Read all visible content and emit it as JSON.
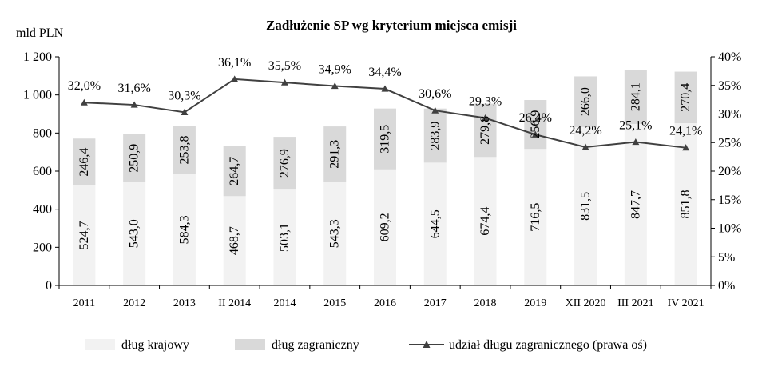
{
  "chart_data": {
    "type": "bar",
    "title": "Zadłużenie SP wg kryterium miejsca emisji",
    "ylabel": "mld PLN",
    "ylim": [
      0,
      1200
    ],
    "y_ticks": [
      "0",
      "200",
      "400",
      "600",
      "800",
      "1 000",
      "1 200"
    ],
    "y2lim": [
      0,
      40
    ],
    "y2_ticks": [
      "0%",
      "5%",
      "10%",
      "15%",
      "20%",
      "25%",
      "30%",
      "35%",
      "40%"
    ],
    "categories": [
      "2011",
      "2012",
      "2013",
      "II 2014",
      "2014",
      "2015",
      "2016",
      "2017",
      "2018",
      "2019",
      "XII 2020",
      "III 2021",
      "IV 2021"
    ],
    "series": [
      {
        "name": "dług krajowy",
        "kind": "stacked-bar",
        "color": "#f2f2f2",
        "values": [
          524.7,
          543.0,
          584.3,
          468.7,
          503.1,
          543.3,
          609.2,
          644.5,
          674.4,
          716.5,
          831.5,
          847.7,
          851.8
        ],
        "labels": [
          "524,7",
          "543,0",
          "584,3",
          "468,7",
          "503,1",
          "543,3",
          "609,2",
          "644,5",
          "674,4",
          "716,5",
          "831,5",
          "847,7",
          "851,8"
        ]
      },
      {
        "name": "dług zagraniczny",
        "kind": "stacked-bar",
        "color": "#d9d9d9",
        "values": [
          246.4,
          250.9,
          253.8,
          264.7,
          276.9,
          291.3,
          319.5,
          283.9,
          279.8,
          256.9,
          266.0,
          284.1,
          270.4
        ],
        "labels": [
          "246,4",
          "250,9",
          "253,8",
          "264,7",
          "276,9",
          "291,3",
          "319,5",
          "283,9",
          "279,8",
          "256,9",
          "266,0",
          "284,1",
          "270,4"
        ]
      },
      {
        "name": "udział długu zagranicznego (prawa oś)",
        "kind": "line",
        "axis": "right",
        "color": "#404040",
        "values": [
          32.0,
          31.6,
          30.3,
          36.1,
          35.5,
          34.9,
          34.4,
          30.6,
          29.3,
          26.4,
          24.2,
          25.1,
          24.1
        ],
        "labels": [
          "32,0%",
          "31,6%",
          "30,3%",
          "36,1%",
          "35,5%",
          "34,9%",
          "34,4%",
          "30,6%",
          "29,3%",
          "26,4%",
          "24,2%",
          "25,1%",
          "24,1%"
        ]
      }
    ],
    "legend_position": "bottom",
    "grid": false
  }
}
